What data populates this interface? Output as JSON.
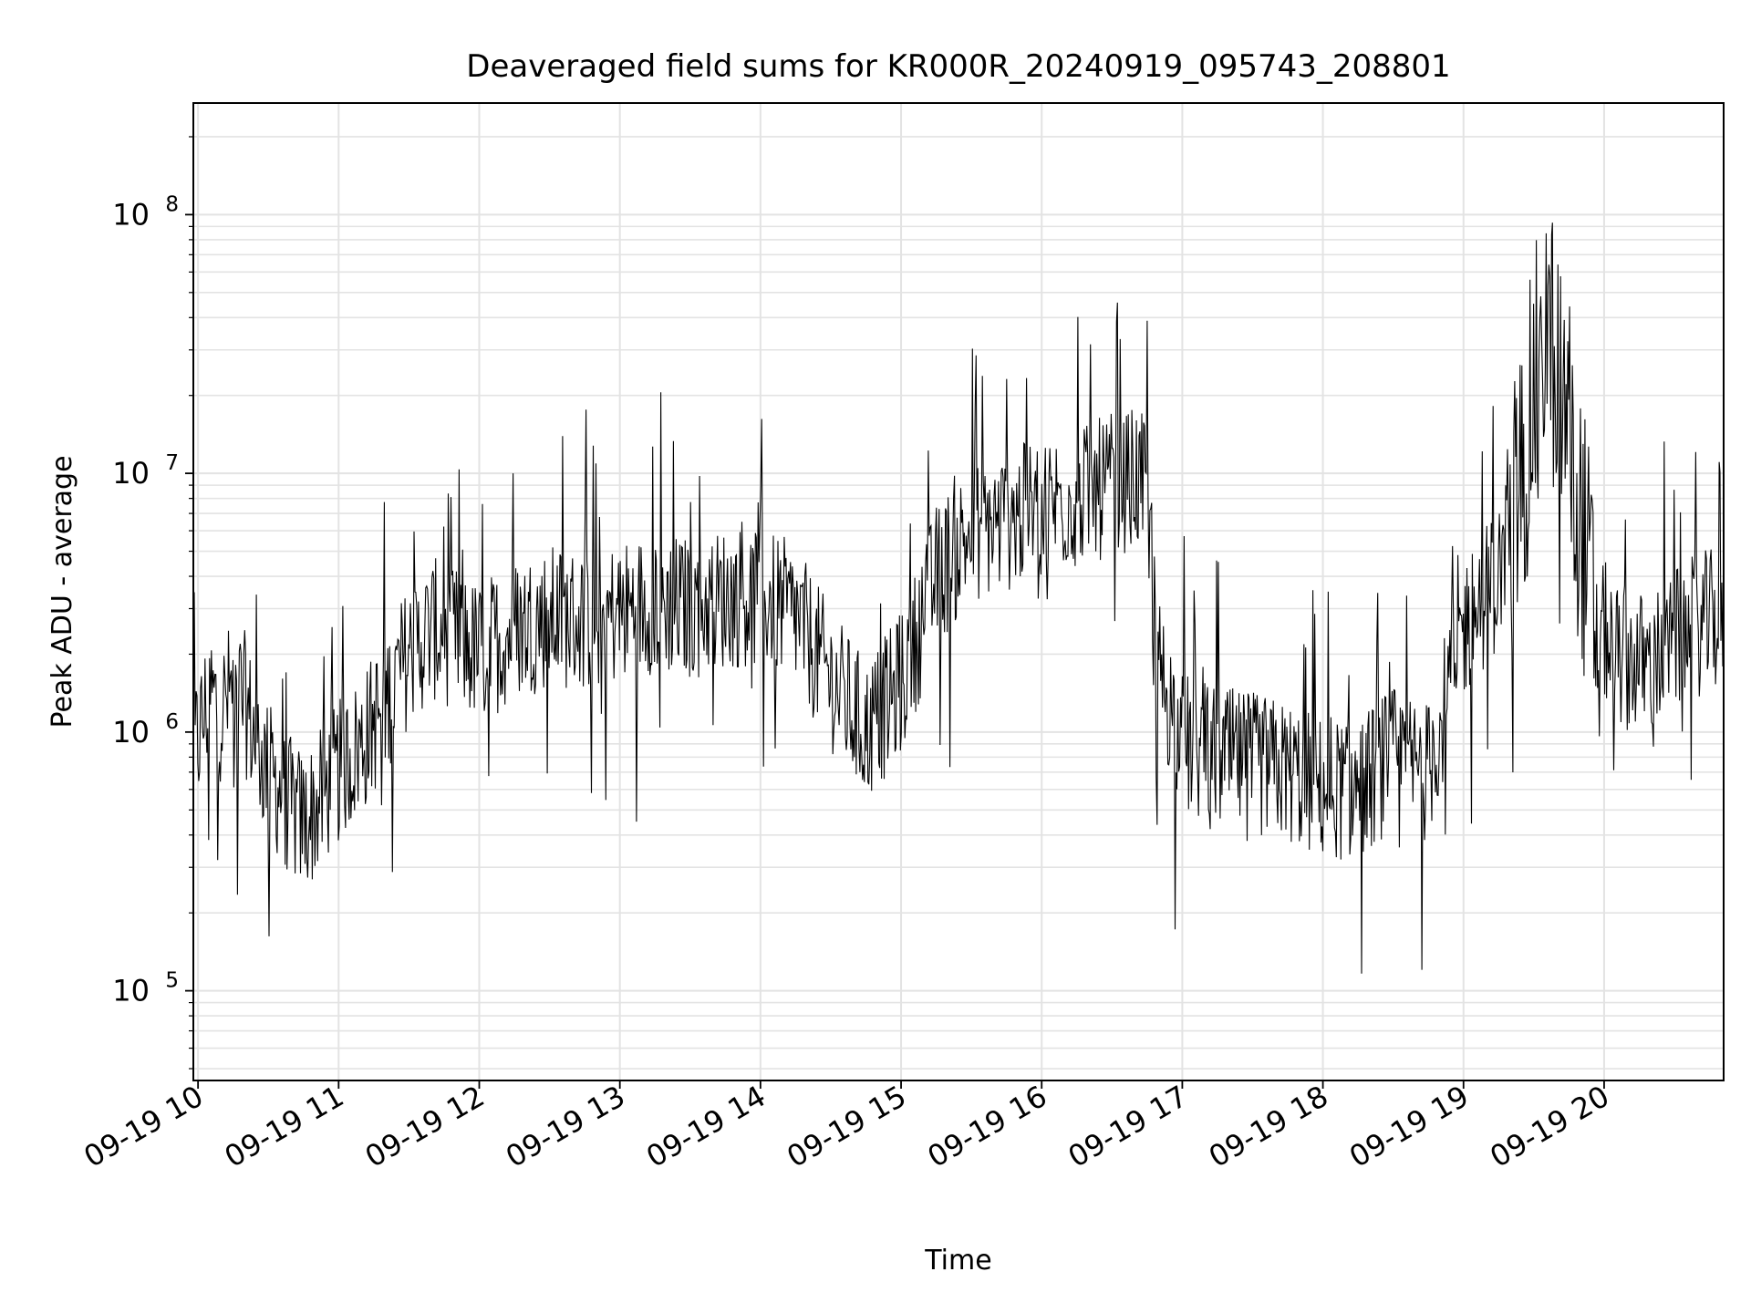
{
  "chart_data": {
    "type": "line",
    "title": "Deaveraged field sums for KR000R_20240919_095743_208801",
    "xlabel": "Time",
    "ylabel": "Peak ADU - average",
    "y_scale": "log",
    "ylim": [
      45000,
      270000000
    ],
    "xlim": [
      "2024-09-19 09:58",
      "2024-09-19 20:51"
    ],
    "x_ticks": [
      "09-19 10",
      "09-19 11",
      "09-19 12",
      "09-19 13",
      "09-19 14",
      "09-19 15",
      "09-19 16",
      "09-19 17",
      "09-19 18",
      "09-19 19",
      "09-19 20"
    ],
    "y_ticks": [
      {
        "value": 100000,
        "base": "10",
        "exp": "5"
      },
      {
        "value": 1000000,
        "base": "10",
        "exp": "6"
      },
      {
        "value": 10000000,
        "base": "10",
        "exp": "7"
      },
      {
        "value": 100000000,
        "base": "10",
        "exp": "8"
      }
    ],
    "grid": true,
    "line_color": "#000000",
    "grid_color": "#e3e3e3",
    "series": [
      {
        "x": [
          "2024-09-19 09:58",
          "2024-09-19 10:05",
          "2024-09-19 10:10",
          "2024-09-19 10:15",
          "2024-09-19 10:20",
          "2024-09-19 10:25",
          "2024-09-19 10:30",
          "2024-09-19 10:35",
          "2024-09-19 10:40",
          "2024-09-19 10:45",
          "2024-09-19 10:50",
          "2024-09-19 10:55",
          "2024-09-19 11:00",
          "2024-09-19 11:10",
          "2024-09-19 11:20",
          "2024-09-19 11:30",
          "2024-09-19 11:40",
          "2024-09-19 11:50",
          "2024-09-19 12:00",
          "2024-09-19 12:15",
          "2024-09-19 12:30",
          "2024-09-19 12:45",
          "2024-09-19 13:00",
          "2024-09-19 13:15",
          "2024-09-19 13:30",
          "2024-09-19 13:45",
          "2024-09-19 14:00",
          "2024-09-19 14:15",
          "2024-09-19 14:30",
          "2024-09-19 14:45",
          "2024-09-19 15:00",
          "2024-09-19 15:15",
          "2024-09-19 15:30",
          "2024-09-19 15:45",
          "2024-09-19 16:00",
          "2024-09-19 16:15",
          "2024-09-19 16:30",
          "2024-09-19 16:40",
          "2024-09-19 16:45",
          "2024-09-19 16:50",
          "2024-09-19 17:00",
          "2024-09-19 17:15",
          "2024-09-19 17:30",
          "2024-09-19 17:45",
          "2024-09-19 18:00",
          "2024-09-19 18:15",
          "2024-09-19 18:30",
          "2024-09-19 18:45",
          "2024-09-19 19:00",
          "2024-09-19 19:15",
          "2024-09-19 19:25",
          "2024-09-19 19:35",
          "2024-09-19 19:45",
          "2024-09-19 19:55",
          "2024-09-19 20:05",
          "2024-09-19 20:20",
          "2024-09-19 20:35",
          "2024-09-19 20:51"
        ],
        "y": [
          800000,
          1400000,
          1200000,
          1500000,
          1300000,
          900000,
          700000,
          600000,
          500000,
          450000,
          500000,
          600000,
          700000,
          900000,
          1300000,
          2000000,
          2500000,
          2300000,
          2000000,
          2500000,
          2800000,
          2700000,
          2900000,
          3200000,
          3000000,
          3300000,
          3400000,
          2800000,
          1600000,
          1000000,
          1500000,
          4000000,
          6000000,
          6500000,
          7500000,
          8000000,
          9000000,
          9500000,
          8500000,
          1800000,
          900000,
          800000,
          750000,
          700000,
          600000,
          600000,
          800000,
          700000,
          2500000,
          4000000,
          10000000,
          40000000,
          15000000,
          3000000,
          2000000,
          1800000,
          2500000,
          2800000
        ]
      }
    ]
  }
}
